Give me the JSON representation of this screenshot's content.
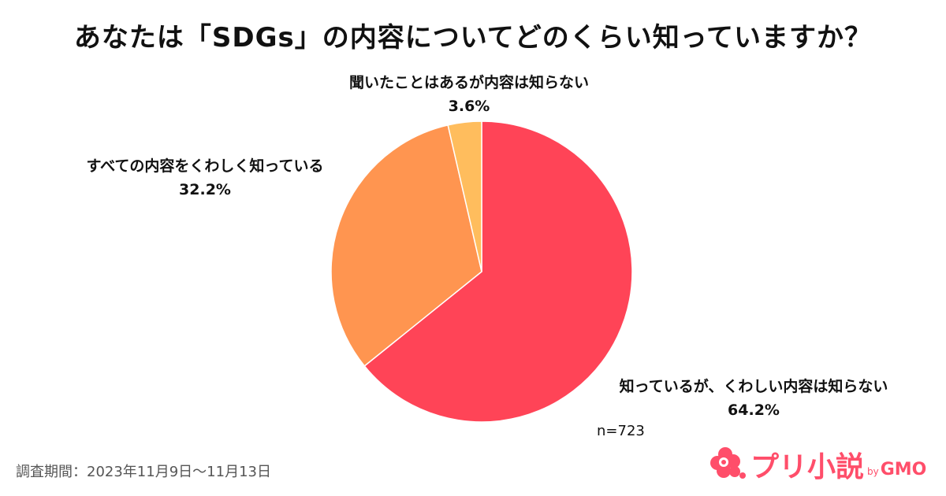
{
  "chart_data": {
    "type": "pie",
    "title": "あなたは「SDGs」の内容についてどのくらい知っていますか？",
    "slices": [
      {
        "label": "知っているが、くわしい内容は知らない",
        "value": 64.2,
        "value_label": "64.2%",
        "color": "#ff4457"
      },
      {
        "label": "すべての内容をくわしく知っている",
        "value": 32.2,
        "value_label": "32.2%",
        "color": "#ff9550"
      },
      {
        "label": "聞いたことはあるが内容は知らない",
        "value": 3.6,
        "value_label": "3.6%",
        "color": "#ffbd5d"
      }
    ],
    "sample_size": "n=723"
  },
  "footer": {
    "survey_period": "調査期間：2023年11月9日〜11月13日"
  },
  "logo": {
    "name": "プリ小説",
    "by": "by",
    "company": "GMO"
  }
}
